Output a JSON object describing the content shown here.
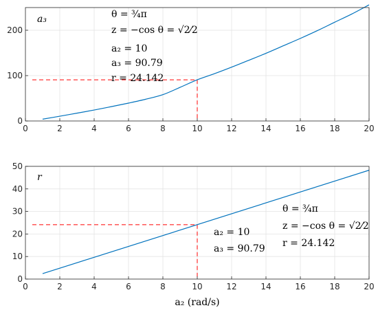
{
  "chart_data": [
    {
      "type": "line",
      "panel_label": "a₃",
      "xlim": [
        0,
        20
      ],
      "ylim": [
        0,
        250
      ],
      "xticks": [
        0,
        2,
        4,
        6,
        8,
        10,
        12,
        14,
        16,
        18,
        20
      ],
      "yticks": [
        0,
        100,
        200
      ],
      "grid": true,
      "series": [
        {
          "color": "#0072BD",
          "x": [
            1,
            2,
            3,
            4,
            5,
            6,
            7,
            8,
            9,
            10,
            11,
            12,
            13,
            14,
            15,
            16,
            17,
            18,
            19,
            20
          ],
          "y": [
            4.0,
            10.5,
            17.2,
            24.1,
            31.6,
            39.4,
            47.9,
            58.0,
            74.1,
            90.79,
            104.2,
            118.6,
            133.8,
            149.2,
            165.6,
            182.0,
            199.3,
            217.7,
            235.9,
            256.0
          ]
        }
      ],
      "marker": {
        "x": 10,
        "y": 90.79,
        "color": "#FF0000"
      },
      "annotation_lines": [
        "θ = ¾π",
        "z = −cos θ = √2⁄2",
        "a₂ = 10",
        "a₃ = 90.79",
        "r = 24.142"
      ]
    },
    {
      "type": "line",
      "panel_label": "r",
      "xlim": [
        0,
        20
      ],
      "ylim": [
        0,
        50
      ],
      "xticks": [
        0,
        2,
        4,
        6,
        8,
        10,
        12,
        14,
        16,
        18,
        20
      ],
      "yticks": [
        0,
        10,
        20,
        30,
        40,
        50
      ],
      "xlabel": "a₂ (rad/s)",
      "grid": true,
      "series": [
        {
          "color": "#0072BD",
          "x": [
            1,
            20
          ],
          "y": [
            2.414,
            48.284
          ]
        }
      ],
      "marker": {
        "x": 10,
        "y": 24.142,
        "color": "#FF0000"
      },
      "annotation_left_lines": [
        "a₂ = 10",
        "a₃ = 90.79"
      ],
      "annotation_right_lines": [
        "θ = ¾π",
        "z = −cos θ = √2⁄2",
        "r = 24.142"
      ]
    }
  ]
}
